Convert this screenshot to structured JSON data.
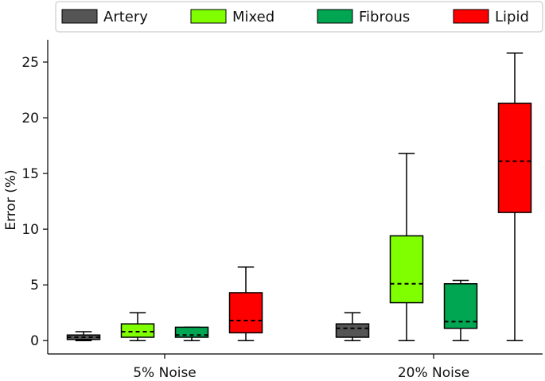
{
  "chart_data": {
    "type": "box",
    "title": "",
    "xlabel": "",
    "ylabel": "Error (%)",
    "ylim": [
      -1.2,
      27
    ],
    "yticks": [
      0,
      5,
      10,
      15,
      20,
      25
    ],
    "grid": false,
    "legend_position": "top",
    "categories": [
      "5% Noise",
      "20% Noise"
    ],
    "series": [
      {
        "name": "Artery",
        "color": "#555555",
        "boxes": [
          {
            "min": 0.0,
            "q1": 0.1,
            "median": 0.3,
            "q3": 0.5,
            "max": 0.8
          },
          {
            "min": 0.0,
            "q1": 0.3,
            "median": 1.1,
            "q3": 1.5,
            "max": 2.5
          }
        ]
      },
      {
        "name": "Mixed",
        "color": "#7fff00",
        "boxes": [
          {
            "min": 0.0,
            "q1": 0.3,
            "median": 0.8,
            "q3": 1.5,
            "max": 2.5
          },
          {
            "min": 0.0,
            "q1": 3.4,
            "median": 5.1,
            "q3": 9.4,
            "max": 16.8
          }
        ]
      },
      {
        "name": "Fibrous",
        "color": "#00a651",
        "boxes": [
          {
            "min": 0.0,
            "q1": 0.3,
            "median": 0.5,
            "q3": 1.2,
            "max": 1.2
          },
          {
            "min": 0.0,
            "q1": 1.1,
            "median": 1.7,
            "q3": 5.1,
            "max": 5.4
          }
        ]
      },
      {
        "name": "Lipid",
        "color": "#ff0000",
        "boxes": [
          {
            "min": 0.0,
            "q1": 0.7,
            "median": 1.8,
            "q3": 4.3,
            "max": 6.6
          },
          {
            "min": 0.0,
            "q1": 11.5,
            "median": 16.1,
            "q3": 21.3,
            "max": 25.8
          }
        ]
      }
    ]
  }
}
